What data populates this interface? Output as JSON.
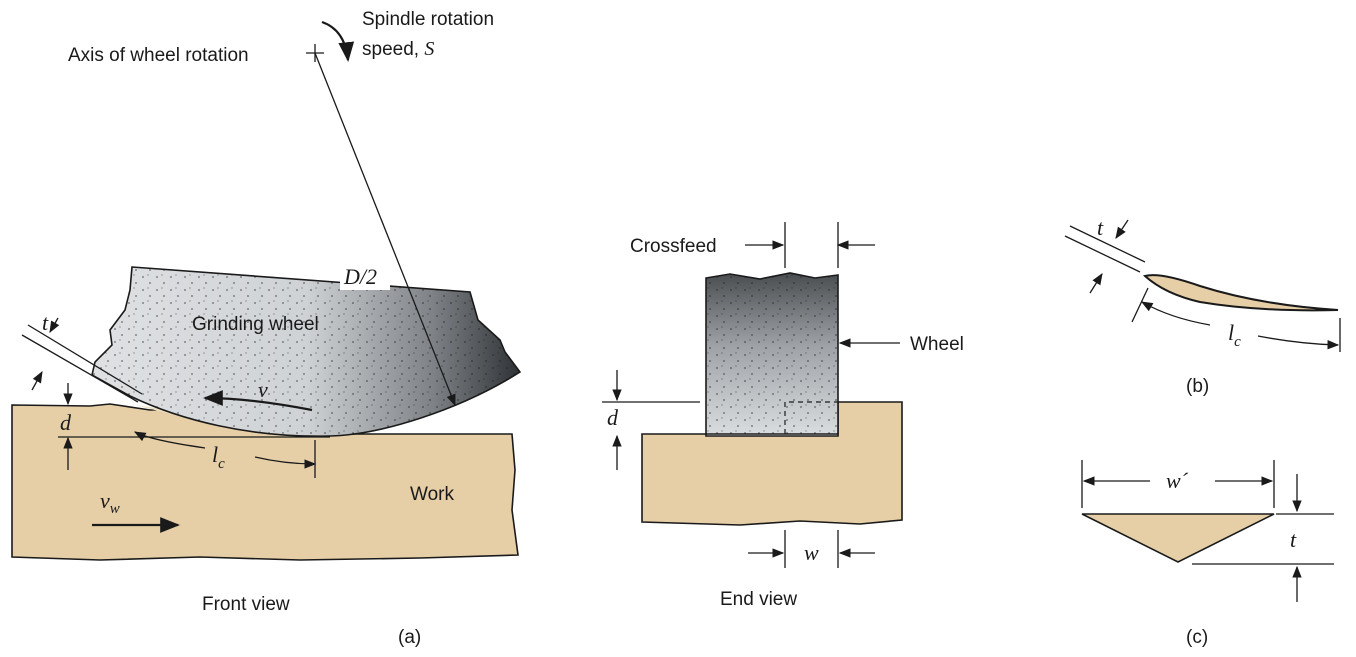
{
  "colors": {
    "work": "#e6cfa7",
    "wheel_light": "#d7dadc",
    "wheel_dark": "#3a3d40",
    "ink": "#1a1a1a"
  },
  "front_view": {
    "axis_label": "Axis of wheel rotation",
    "spindle_label_line1": "Spindle rotation",
    "spindle_label_line2": "speed, ",
    "spindle_symbol": "S",
    "radius_label": "D/2",
    "wheel_label": "Grinding wheel",
    "velocity_label": "v",
    "t_label": "t",
    "d_label": "d",
    "lc_label": "l",
    "lc_sub": "c",
    "work_label": "Work",
    "vw_label": "v",
    "vw_sub": "w",
    "caption": "Front view"
  },
  "end_view": {
    "crossfeed_label": "Crossfeed",
    "wheel_label": "Wheel",
    "d_label": "d",
    "w_label": "w",
    "caption": "End view"
  },
  "panel_a_label": "(a)",
  "panel_b": {
    "t_label": "t",
    "lc_label": "l",
    "lc_sub": "c",
    "label": "(b)"
  },
  "panel_c": {
    "w_label": "w´",
    "t_label": "t",
    "label": "(c)"
  }
}
